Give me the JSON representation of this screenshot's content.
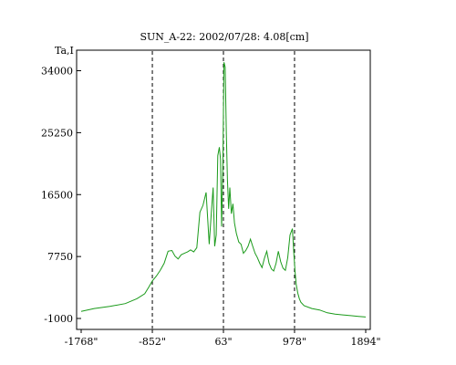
{
  "chart_data": {
    "type": "line",
    "title": "SUN_A-22: 2002/07/28: 4.08[cm]",
    "ylabel": "Ta,I",
    "xlabel": "",
    "x_ticks": [
      {
        "value": -1768,
        "label": "-1768\""
      },
      {
        "value": -852,
        "label": "-852\""
      },
      {
        "value": 63,
        "label": "63\""
      },
      {
        "value": 978,
        "label": "978\""
      },
      {
        "value": 1894,
        "label": "1894\""
      }
    ],
    "y_ticks": [
      {
        "value": -1000,
        "label": "-1000"
      },
      {
        "value": 7750,
        "label": "7750"
      },
      {
        "value": 16500,
        "label": "16500"
      },
      {
        "value": 25250,
        "label": "25250"
      },
      {
        "value": 34000,
        "label": "34000"
      }
    ],
    "xlim": [
      -1768,
      1894
    ],
    "ylim": [
      -1000,
      36000
    ],
    "grid": false,
    "vlines": [
      -852,
      63,
      978
    ],
    "line_color": "#1a9a1a",
    "vline_color": "#000000",
    "series": [
      {
        "x": [
          -1768,
          -1600,
          -1400,
          -1200,
          -1050,
          -950,
          -900,
          -852,
          -800,
          -750,
          -700,
          -650,
          -600,
          -560,
          -520,
          -480,
          -440,
          -400,
          -360,
          -320,
          -280,
          -240,
          -200,
          -160,
          -120,
          -90,
          -70,
          -50,
          -30,
          -10,
          10,
          25,
          40,
          55,
          70,
          85,
          100,
          115,
          130,
          145,
          165,
          185,
          205,
          230,
          260,
          290,
          320,
          350,
          380,
          410,
          440,
          470,
          500,
          530,
          560,
          590,
          620,
          650,
          680,
          710,
          740,
          770,
          800,
          830,
          860,
          890,
          920,
          950,
          970,
          985,
          1000,
          1020,
          1040,
          1060,
          1100,
          1200,
          1300,
          1400,
          1500,
          1600,
          1700,
          1800,
          1894
        ],
        "y": [
          0,
          400,
          700,
          1100,
          1800,
          2500,
          3400,
          4300,
          5000,
          5800,
          6800,
          8500,
          8600,
          7800,
          7400,
          8000,
          8200,
          8400,
          8700,
          8400,
          9000,
          14000,
          15000,
          16800,
          9500,
          14500,
          17500,
          9200,
          10800,
          22000,
          23200,
          21500,
          12000,
          20000,
          35200,
          34500,
          25000,
          18500,
          14500,
          17500,
          13800,
          15200,
          12500,
          11000,
          9800,
          9500,
          8200,
          8600,
          9200,
          10200,
          9200,
          8200,
          7600,
          6800,
          6200,
          7500,
          8500,
          6800,
          6000,
          5700,
          6800,
          8500,
          7000,
          6100,
          5800,
          7600,
          10800,
          11700,
          8000,
          5500,
          3800,
          2600,
          1800,
          1300,
          800,
          400,
          200,
          -200,
          -400,
          -500,
          -600,
          -700,
          -800
        ]
      }
    ]
  }
}
